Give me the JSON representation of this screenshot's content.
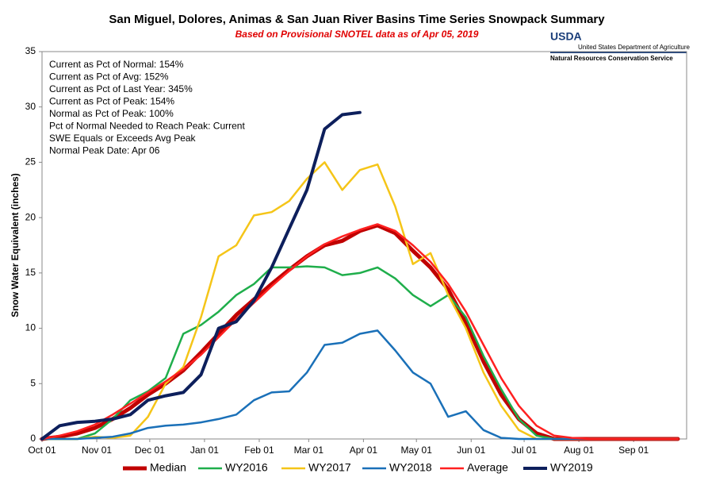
{
  "chart_data": {
    "type": "line",
    "title": "San Miguel, Dolores, Animas & San Juan River Basins Time Series Snowpack Summary",
    "subtitle": "Based on Provisional SNOTEL data as of Apr 05, 2019",
    "ylabel": "Snow Water Equivalent (inches)",
    "logo": {
      "mark": "USDA",
      "line1": "United States Department of Agriculture",
      "line2": "Natural Resources Conservation Service"
    },
    "annotations": [
      "Current  as Pct of Normal: 154%",
      "Current  as Pct of Avg: 152%",
      "Current  as Pct of Last Year: 345%",
      "Current  as Pct of Peak: 154%",
      "Normal  as Pct of Peak: 100%",
      "Pct of Normal Needed  to Reach Peak: Current",
      "SWE Equals or Exceeds Avg Peak",
      "Normal Peak Date: Apr 06"
    ],
    "x": [
      0,
      10,
      20,
      30,
      40,
      50,
      60,
      70,
      80,
      90,
      100,
      110,
      120,
      130,
      140,
      150,
      160,
      170,
      180,
      190,
      200,
      210,
      220,
      230,
      240,
      250,
      260,
      270,
      280,
      290,
      300,
      310,
      320,
      330,
      340,
      350,
      360
    ],
    "xlim": [
      0,
      365
    ],
    "xticks": [
      {
        "value": 0,
        "label": "Oct 01"
      },
      {
        "value": 31,
        "label": "Nov 01"
      },
      {
        "value": 61,
        "label": "Dec 01"
      },
      {
        "value": 92,
        "label": "Jan 01"
      },
      {
        "value": 123,
        "label": "Feb 01"
      },
      {
        "value": 151,
        "label": "Mar 01"
      },
      {
        "value": 182,
        "label": "Apr 01"
      },
      {
        "value": 212,
        "label": "May 01"
      },
      {
        "value": 243,
        "label": "Jun 01"
      },
      {
        "value": 273,
        "label": "Jul 01"
      },
      {
        "value": 304,
        "label": "Aug 01"
      },
      {
        "value": 335,
        "label": "Sep 01"
      }
    ],
    "ylim": [
      0,
      35
    ],
    "yticks": [
      0,
      5,
      10,
      15,
      20,
      25,
      30,
      35
    ],
    "grid": false,
    "legend": "bottom",
    "series": [
      {
        "name": "Median",
        "color": "#c00000",
        "width": 5,
        "values": [
          0,
          0.2,
          0.5,
          1.0,
          1.8,
          2.8,
          4.0,
          5.0,
          6.2,
          7.8,
          9.5,
          11.2,
          12.6,
          14.0,
          15.3,
          16.5,
          17.5,
          17.9,
          18.8,
          19.3,
          18.6,
          17.0,
          15.5,
          13.5,
          10.5,
          7.0,
          4.0,
          1.8,
          0.5,
          0,
          0,
          0,
          0,
          0,
          0,
          0,
          0
        ]
      },
      {
        "name": "WY2016",
        "color": "#1fae4b",
        "width": 2.5,
        "values": [
          0,
          0,
          0,
          0.5,
          1.8,
          3.5,
          4.3,
          5.5,
          9.5,
          10.3,
          11.5,
          13,
          14,
          15.5,
          15.5,
          15.6,
          15.5,
          14.8,
          15.0,
          15.5,
          14.5,
          13,
          12,
          13,
          11,
          7.5,
          4.5,
          1.8,
          0.3,
          0,
          0,
          0,
          0,
          0,
          0,
          0,
          0
        ]
      },
      {
        "name": "WY2017",
        "color": "#f5c518",
        "width": 2.5,
        "values": [
          0,
          0,
          0,
          0.2,
          0.1,
          0.3,
          2,
          5,
          6.5,
          11,
          16.5,
          17.5,
          20.2,
          20.5,
          21.5,
          23.5,
          25.0,
          22.5,
          24.3,
          24.8,
          21,
          15.8,
          16.8,
          13,
          10,
          6,
          3,
          0.8,
          0,
          0,
          0,
          0,
          0,
          0,
          0,
          0,
          0
        ]
      },
      {
        "name": "WY2018",
        "color": "#1a70b8",
        "width": 2.5,
        "values": [
          0,
          0,
          0,
          0.1,
          0.2,
          0.5,
          1,
          1.2,
          1.3,
          1.5,
          1.8,
          2.2,
          3.5,
          4.2,
          4.3,
          6,
          8.5,
          8.7,
          9.5,
          9.8,
          8,
          6,
          5,
          2,
          2.5,
          0.8,
          0.1,
          0,
          0,
          0,
          0,
          0,
          0,
          0,
          0,
          0,
          0
        ]
      },
      {
        "name": "Average",
        "color": "#ff2020",
        "width": 2.5,
        "values": [
          0,
          0.3,
          0.7,
          1.3,
          2.2,
          3.2,
          4.2,
          5.2,
          6.3,
          7.6,
          9.2,
          10.8,
          12.3,
          13.8,
          15.2,
          16.5,
          17.6,
          18.3,
          18.9,
          19.4,
          18.8,
          17.5,
          16.0,
          14.0,
          11.5,
          8.5,
          5.5,
          3.0,
          1.2,
          0.3,
          0.1,
          0,
          0,
          0,
          0,
          0,
          0
        ]
      },
      {
        "name": "WY2019",
        "color": "#0d1f5c",
        "width": 4,
        "values": [
          0,
          1.2,
          1.5,
          1.6,
          1.8,
          2.2,
          3.5,
          3.9,
          4.2,
          5.8,
          10,
          10.6,
          12.5,
          15.5,
          19.0,
          22.5,
          28.0,
          29.3,
          29.5,
          null,
          null,
          null,
          null,
          null,
          null,
          null,
          null,
          null,
          null,
          null,
          null,
          null,
          null,
          null,
          null,
          null,
          null
        ]
      }
    ]
  }
}
